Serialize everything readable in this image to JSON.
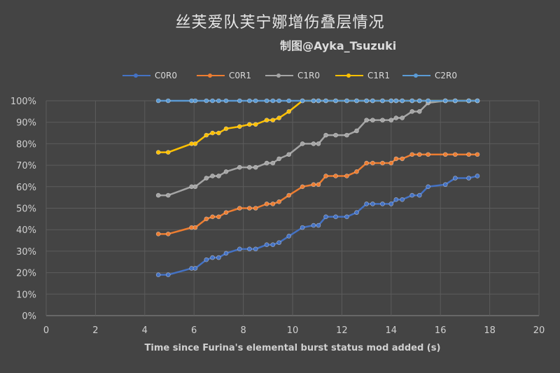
{
  "chart_data": {
    "type": "line",
    "title": "丝芙爱队芙宁娜增伤叠层情况",
    "subtitle": "制图@Ayka_Tsuzuki",
    "xlabel": "Time since Furina's elemental burst status mod added (s)",
    "ylabel": "",
    "xlim": [
      0,
      20
    ],
    "ylim": [
      0,
      1
    ],
    "xticks": [
      "0",
      "2",
      "4",
      "6",
      "8",
      "10",
      "12",
      "14",
      "16",
      "18",
      "20"
    ],
    "yticks": [
      "0%",
      "10%",
      "20%",
      "30%",
      "40%",
      "50%",
      "60%",
      "70%",
      "80%",
      "90%",
      "100%"
    ],
    "grid": true,
    "legend_position": "top",
    "series": [
      {
        "name": "C0R0",
        "color": "#4472C4",
        "x": [
          4.55,
          4.95,
          5.9,
          6.05,
          6.5,
          6.75,
          7.0,
          7.3,
          7.85,
          8.25,
          8.5,
          8.95,
          9.2,
          9.45,
          9.85,
          10.4,
          10.85,
          11.05,
          11.35,
          11.75,
          12.2,
          12.6,
          13.0,
          13.25,
          13.65,
          14.0,
          14.2,
          14.45,
          14.85,
          15.15,
          15.5,
          16.2,
          16.6,
          17.15,
          17.5
        ],
        "y": [
          0.19,
          0.19,
          0.22,
          0.22,
          0.26,
          0.27,
          0.27,
          0.29,
          0.31,
          0.31,
          0.31,
          0.33,
          0.33,
          0.34,
          0.37,
          0.41,
          0.42,
          0.42,
          0.46,
          0.46,
          0.46,
          0.48,
          0.52,
          0.52,
          0.52,
          0.52,
          0.54,
          0.54,
          0.56,
          0.56,
          0.6,
          0.61,
          0.64,
          0.64,
          0.65
        ]
      },
      {
        "name": "C0R1",
        "color": "#ED7D31",
        "x": [
          4.55,
          4.95,
          5.9,
          6.05,
          6.5,
          6.75,
          7.0,
          7.3,
          7.85,
          8.25,
          8.5,
          8.95,
          9.2,
          9.45,
          9.85,
          10.4,
          10.85,
          11.05,
          11.35,
          11.75,
          12.2,
          12.6,
          13.0,
          13.25,
          13.65,
          14.0,
          14.2,
          14.45,
          14.85,
          15.15,
          15.5,
          16.2,
          16.6,
          17.15,
          17.5
        ],
        "y": [
          0.38,
          0.38,
          0.41,
          0.41,
          0.45,
          0.46,
          0.46,
          0.48,
          0.5,
          0.5,
          0.5,
          0.52,
          0.52,
          0.53,
          0.56,
          0.6,
          0.61,
          0.61,
          0.65,
          0.65,
          0.65,
          0.67,
          0.71,
          0.71,
          0.71,
          0.71,
          0.73,
          0.73,
          0.75,
          0.75,
          0.75,
          0.75,
          0.75,
          0.75,
          0.75
        ]
      },
      {
        "name": "C1R0",
        "color": "#A5A5A5",
        "x": [
          4.55,
          4.95,
          5.9,
          6.05,
          6.5,
          6.75,
          7.0,
          7.3,
          7.85,
          8.25,
          8.5,
          8.95,
          9.2,
          9.45,
          9.85,
          10.4,
          10.85,
          11.05,
          11.35,
          11.75,
          12.2,
          12.6,
          13.0,
          13.25,
          13.65,
          14.0,
          14.2,
          14.45,
          14.85,
          15.15,
          15.5,
          16.2,
          16.6,
          17.15,
          17.5
        ],
        "y": [
          0.56,
          0.56,
          0.6,
          0.6,
          0.64,
          0.65,
          0.65,
          0.67,
          0.69,
          0.69,
          0.69,
          0.71,
          0.71,
          0.73,
          0.75,
          0.8,
          0.8,
          0.8,
          0.84,
          0.84,
          0.84,
          0.86,
          0.91,
          0.91,
          0.91,
          0.91,
          0.92,
          0.92,
          0.95,
          0.95,
          0.99,
          1.0,
          1.0,
          1.0,
          1.0
        ]
      },
      {
        "name": "C1R1",
        "color": "#FFC000",
        "x": [
          4.55,
          4.95,
          5.9,
          6.05,
          6.5,
          6.75,
          7.0,
          7.3,
          7.85,
          8.25,
          8.5,
          8.95,
          9.2,
          9.45,
          9.85,
          10.4,
          10.85,
          11.05,
          11.35,
          11.75,
          12.2,
          12.6,
          13.0,
          13.25,
          13.65,
          14.0,
          14.2,
          14.45,
          14.85,
          15.15,
          15.5,
          16.2,
          16.6,
          17.15,
          17.5
        ],
        "y": [
          0.76,
          0.76,
          0.8,
          0.8,
          0.84,
          0.85,
          0.85,
          0.87,
          0.88,
          0.89,
          0.89,
          0.91,
          0.91,
          0.92,
          0.95,
          1.0,
          1.0,
          1.0,
          1.0,
          1.0,
          1.0,
          1.0,
          1.0,
          1.0,
          1.0,
          1.0,
          1.0,
          1.0,
          1.0,
          1.0,
          1.0,
          1.0,
          1.0,
          1.0,
          1.0
        ]
      },
      {
        "name": "C2R0",
        "color": "#5B9BD5",
        "x": [
          4.55,
          4.95,
          5.9,
          6.05,
          6.5,
          6.75,
          7.0,
          7.3,
          7.85,
          8.25,
          8.5,
          8.95,
          9.2,
          9.45,
          9.85,
          10.4,
          10.85,
          11.05,
          11.35,
          11.75,
          12.2,
          12.6,
          13.0,
          13.25,
          13.65,
          14.0,
          14.2,
          14.45,
          14.85,
          15.15,
          15.5,
          16.2,
          16.6,
          17.15,
          17.5
        ],
        "y": [
          1.0,
          1.0,
          1.0,
          1.0,
          1.0,
          1.0,
          1.0,
          1.0,
          1.0,
          1.0,
          1.0,
          1.0,
          1.0,
          1.0,
          1.0,
          1.0,
          1.0,
          1.0,
          1.0,
          1.0,
          1.0,
          1.0,
          1.0,
          1.0,
          1.0,
          1.0,
          1.0,
          1.0,
          1.0,
          1.0,
          1.0,
          1.0,
          1.0,
          1.0,
          1.0
        ]
      }
    ]
  }
}
